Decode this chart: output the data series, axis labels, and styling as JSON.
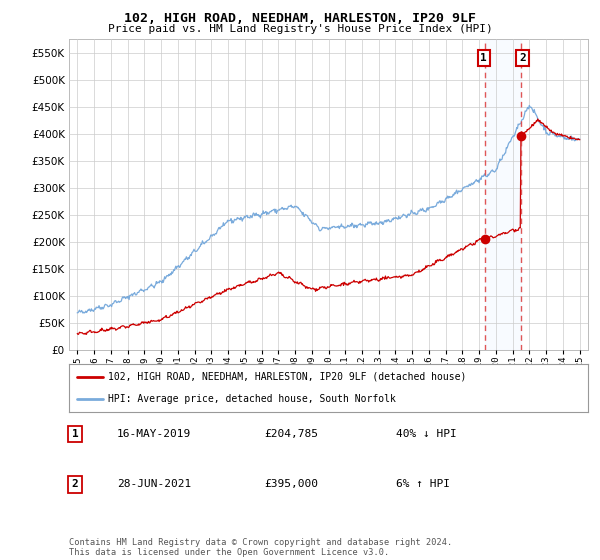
{
  "title": "102, HIGH ROAD, NEEDHAM, HARLESTON, IP20 9LF",
  "subtitle": "Price paid vs. HM Land Registry's House Price Index (HPI)",
  "legend_line1": "102, HIGH ROAD, NEEDHAM, HARLESTON, IP20 9LF (detached house)",
  "legend_line2": "HPI: Average price, detached house, South Norfolk",
  "annotation1_date": "16-MAY-2019",
  "annotation1_price": "£204,785",
  "annotation1_hpi": "40% ↓ HPI",
  "annotation2_date": "28-JUN-2021",
  "annotation2_price": "£395,000",
  "annotation2_hpi": "6% ↑ HPI",
  "transaction1_year": 2019.37,
  "transaction1_price": 204785,
  "transaction2_year": 2021.49,
  "transaction2_price": 395000,
  "ylim_min": 0,
  "ylim_max": 575000,
  "xlim_min": 1994.5,
  "xlim_max": 2025.5,
  "property_color": "#cc0000",
  "hpi_color": "#7aabdc",
  "vline_color": "#dd4444",
  "shade_color": "#ddeeff",
  "background_color": "#ffffff",
  "grid_color": "#cccccc",
  "footnote": "Contains HM Land Registry data © Crown copyright and database right 2024.\nThis data is licensed under the Open Government Licence v3.0."
}
